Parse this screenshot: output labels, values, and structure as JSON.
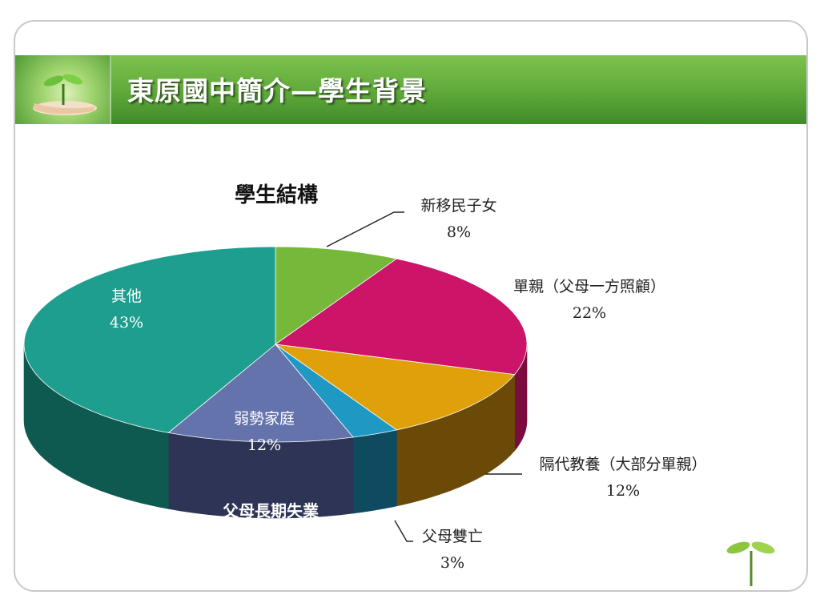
{
  "slide": {
    "title": "東原國中簡介—學生背景"
  },
  "chart_data": {
    "type": "pie",
    "title": "學生結構",
    "slices": [
      {
        "label": "新移民子女",
        "value": 8,
        "display": "8%",
        "color": "#76b83a",
        "side_color": "#4a7a22"
      },
      {
        "label": "單親（父母一方照顧）",
        "value": 22,
        "display": "22%",
        "color": "#cc1469",
        "side_color": "#7a0c40"
      },
      {
        "label": "隔代教養（大部分單親）",
        "value": 12,
        "display": "12%",
        "color": "#e0a00a",
        "side_color": "#6a4a06"
      },
      {
        "label": "父母雙亡",
        "value": 3,
        "display": "3%",
        "color": "#1f99c4",
        "side_color": "#0e4a60"
      },
      {
        "label": "弱勢家庭",
        "value": 12,
        "display": "12%",
        "color": "#6573ad",
        "side_color": "#2e3456"
      },
      {
        "label": "其他",
        "value": 43,
        "display": "43%",
        "color": "#1d9e8e",
        "side_color": "#0f5a50"
      }
    ],
    "annotation": "父母長期失業",
    "legend": "none"
  }
}
